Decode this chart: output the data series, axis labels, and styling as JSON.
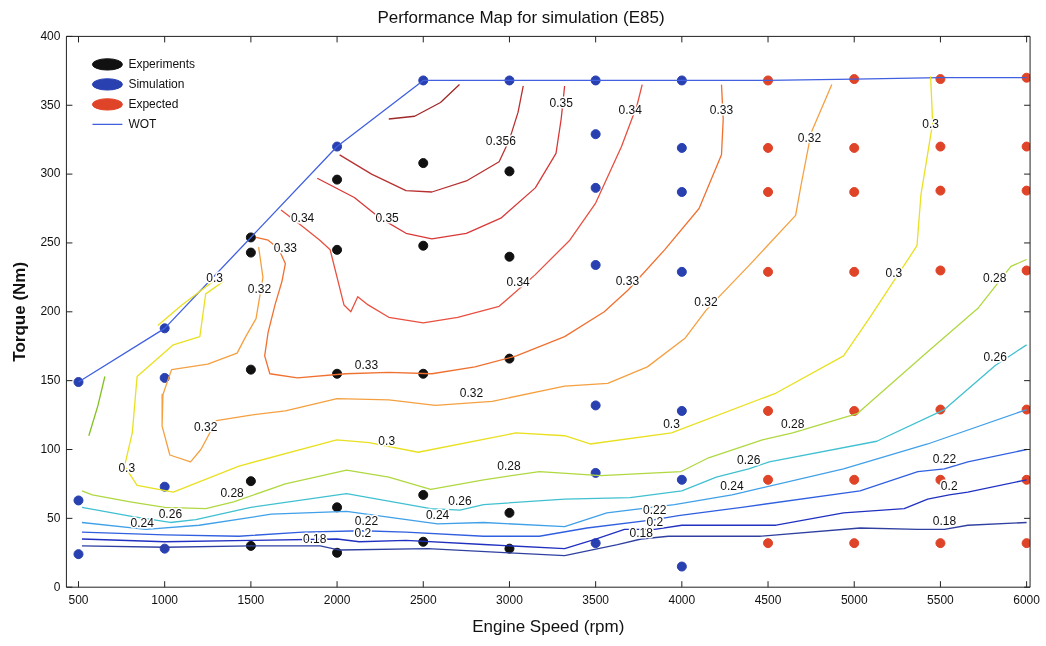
{
  "chart_data": {
    "type": "scatter",
    "title": "Performance Map for simulation (E85)",
    "xlabel": "Engine Speed (rpm)",
    "ylabel": "Torque (Nm)",
    "xlim": [
      430,
      6020
    ],
    "xticks": [
      500,
      1000,
      1500,
      2000,
      2500,
      3000,
      3500,
      4000,
      4500,
      5000,
      5500,
      6000
    ],
    "ylim": [
      0,
      400
    ],
    "yticks": [
      0,
      50,
      100,
      150,
      200,
      250,
      300,
      350,
      400
    ],
    "grid": false,
    "legend": "top left",
    "marker": "circle",
    "series": [
      {
        "type": "line",
        "color": "#a02828",
        "marker": "none",
        "x": [
          2300,
          2450,
          2600,
          2710
        ],
        "values": [
          340,
          342,
          352,
          365
        ]
      },
      {
        "type": "line",
        "color": "#b83030",
        "marker": "none",
        "x": [
          2015,
          2200,
          2400,
          2550,
          2750,
          2940,
          3000,
          3050,
          3080
        ],
        "values": [
          314,
          300,
          288,
          287,
          295,
          309,
          325,
          345,
          364
        ]
      },
      {
        "type": "line",
        "color": "#d83838",
        "marker": "none",
        "x": [
          1885,
          2100,
          2250,
          2400,
          2550,
          2750,
          2950,
          3150,
          3270,
          3300,
          3320
        ],
        "values": [
          297,
          283,
          268,
          257,
          253,
          257,
          268,
          290,
          315,
          340,
          364
        ]
      },
      {
        "type": "line",
        "color": "#e85040",
        "marker": "none",
        "x": [
          1675,
          1800,
          1900,
          1960,
          2000,
          2040,
          2080,
          2120,
          2180,
          2300,
          2500,
          2700,
          2940,
          3150,
          3350,
          3500,
          3650,
          3740,
          3770
        ],
        "values": [
          274,
          262,
          252,
          245,
          225,
          205,
          200,
          211,
          205,
          196,
          192,
          196,
          204,
          227,
          252,
          279,
          320,
          350,
          365
        ]
      },
      {
        "type": "line",
        "color": "#f07030",
        "marker": "none",
        "x": [
          1530,
          1600,
          1660,
          1700,
          1680,
          1640,
          1600,
          1580,
          1610,
          1770,
          2050,
          2300,
          2550,
          2800,
          3040,
          3320,
          3550,
          3690,
          3900,
          4100,
          4230,
          4240,
          4230
        ],
        "values": [
          254,
          252,
          246,
          235,
          222,
          205,
          185,
          168,
          155,
          152,
          155,
          156,
          155,
          160,
          168,
          182,
          200,
          216,
          245,
          275,
          314,
          340,
          365
        ]
      },
      {
        "type": "line",
        "color": "#f5a040",
        "marker": "none",
        "x": [
          1545,
          1570,
          1530,
          1470,
          1420,
          1250,
          1040,
          990,
          985,
          1030,
          1150,
          1210,
          1300,
          1500,
          1700,
          2000,
          2300,
          2570,
          2900,
          3320,
          3570,
          3800,
          4020,
          4140,
          4400,
          4660,
          4690,
          4750,
          4870
        ],
        "values": [
          247,
          225,
          195,
          182,
          170,
          162,
          158,
          140,
          117,
          96,
          91,
          100,
          121,
          125,
          128,
          137,
          136,
          132,
          135,
          146,
          148,
          160,
          181,
          201,
          235,
          270,
          291,
          330,
          365
        ]
      },
      {
        "type": "line",
        "color": "#e8e020",
        "marker": "none",
        "x": [
          1340,
          1238,
          1204,
          1050,
          840,
          812,
          767,
          840,
          1050,
          1431,
          1998,
          2186,
          2470,
          3037,
          3320,
          3468,
          3940,
          4547,
          4938,
          5091,
          5364,
          5387,
          5455,
          5443
        ],
        "values": [
          222,
          213,
          182,
          176,
          153,
          112,
          88,
          74,
          69,
          88,
          107,
          105,
          98,
          112,
          110,
          104,
          112,
          141,
          168,
          196,
          248,
          285,
          337,
          371
        ]
      },
      {
        "type": "line",
        "color": "#e8e020",
        "marker": "none",
        "x": [
          960,
          1100,
          1280
        ],
        "values": [
          190,
          205,
          222
        ]
      },
      {
        "type": "line",
        "color": "#80c020",
        "marker": "none",
        "x": [
          560,
          613,
          653
        ],
        "values": [
          110,
          132,
          153
        ]
      },
      {
        "type": "line",
        "color": "#b0d840",
        "marker": "none",
        "x": [
          520,
          580,
          800,
          1000,
          1238,
          1400,
          1700,
          2055,
          2300,
          2543,
          2850,
          3173,
          3530,
          3996,
          4155,
          4467,
          4643,
          5017,
          5426,
          5721,
          5909,
          6000
        ],
        "values": [
          70,
          67,
          62,
          58,
          57,
          62,
          75,
          85,
          80,
          71,
          78,
          84,
          81,
          84,
          94,
          107,
          112,
          126,
          171,
          203,
          233,
          238
        ]
      },
      {
        "type": "line",
        "color": "#40c0d0",
        "marker": "none",
        "x": [
          520,
          824,
          1033,
          1181,
          1500,
          2055,
          2543,
          2713,
          2850,
          3320,
          3700,
          4000,
          4200,
          4388,
          4507,
          5131,
          5523,
          5818,
          6000
        ],
        "values": [
          58,
          51,
          47,
          49,
          58,
          68,
          57,
          56,
          60,
          64,
          65,
          70,
          80,
          86,
          91,
          106,
          129,
          161,
          176
        ]
      },
      {
        "type": "line",
        "color": "#40a0e8",
        "marker": "none",
        "x": [
          520,
          892,
          1200,
          1618,
          2055,
          2350,
          2583,
          2850,
          3320,
          3565,
          3957,
          4291,
          4427,
          4938,
          5426,
          6000
        ],
        "values": [
          47,
          42,
          45,
          53,
          55,
          50,
          46,
          47,
          44,
          54,
          60,
          67,
          71,
          86,
          104,
          129
        ]
      },
      {
        "type": "line",
        "color": "#3060e0",
        "marker": "none",
        "x": [
          520,
          1000,
          1431,
          1800,
          2146,
          2400,
          2850,
          3173,
          3450,
          3843,
          3980,
          4348,
          5034,
          5369,
          5523,
          5659,
          6000
        ],
        "values": [
          40,
          38,
          37,
          40,
          41,
          40,
          37,
          37,
          43,
          49,
          52,
          58,
          70,
          84,
          86,
          91,
          100
        ]
      },
      {
        "type": "line",
        "color": "#2030c0",
        "marker": "none",
        "x": [
          520,
          1000,
          1500,
          2000,
          2129,
          2400,
          2850,
          3320,
          3500,
          3667,
          3843,
          4000,
          4547,
          4938,
          5290,
          5426,
          5551,
          5659,
          6000
        ],
        "values": [
          35,
          33,
          34,
          35,
          33,
          34,
          31,
          28,
          35,
          42,
          42,
          45,
          45,
          54,
          57,
          64,
          67,
          69,
          78
        ]
      },
      {
        "type": "line",
        "color": "#3040a0",
        "marker": "none",
        "x": [
          520,
          1000,
          1500,
          1902,
          2015,
          2526,
          3000,
          3320,
          3627,
          3764,
          3922,
          4450,
          5034,
          5369,
          5523,
          5659,
          6000
        ],
        "values": [
          30,
          29,
          30,
          30,
          27,
          28,
          25,
          23,
          31,
          35,
          37,
          37,
          43,
          42,
          42,
          45,
          47
        ]
      },
      {
        "type": "line",
        "name": "WOT",
        "color": "#4060e0",
        "marker": "none",
        "x": [
          500,
          1000,
          1500,
          2000,
          2500,
          3000,
          3500,
          4000,
          4500,
          5000,
          5500,
          6000
        ],
        "values": [
          149,
          188,
          254,
          320,
          368,
          368,
          368,
          368,
          368,
          369,
          370,
          370
        ]
      },
      {
        "name": "Experiments",
        "color": "#111111",
        "x": [
          1500,
          1500,
          1500,
          1500,
          1500,
          2000,
          2000,
          2000,
          2000,
          2000,
          2500,
          2500,
          2500,
          2500,
          2500,
          3000,
          3000,
          3000,
          3000,
          3000
        ],
        "values": [
          254,
          243,
          158,
          77,
          30,
          296,
          245,
          155,
          58,
          25,
          308,
          248,
          155,
          67,
          33,
          302,
          240,
          166,
          54,
          28
        ]
      },
      {
        "name": "Simulation",
        "color": "#2840b0",
        "x": [
          500,
          500,
          500,
          1000,
          1000,
          1000,
          1000,
          2000,
          2500,
          3000,
          3500,
          3500,
          3500,
          3500,
          3500,
          3500,
          3500,
          4000,
          4000,
          4000,
          4000,
          4000,
          4000,
          4000
        ],
        "values": [
          149,
          63,
          24,
          188,
          152,
          73,
          28,
          320,
          368,
          368,
          368,
          329,
          290,
          234,
          132,
          83,
          32,
          368,
          319,
          287,
          229,
          128,
          78,
          15
        ]
      },
      {
        "name": "Expected",
        "color": "#e04428",
        "x": [
          4500,
          4500,
          4500,
          4500,
          4500,
          4500,
          4500,
          5000,
          5000,
          5000,
          5000,
          5000,
          5000,
          5000,
          5500,
          5500,
          5500,
          5500,
          5500,
          5500,
          5500,
          6000,
          6000,
          6000,
          6000,
          6000,
          6000,
          6000
        ],
        "values": [
          368,
          319,
          287,
          229,
          128,
          78,
          32,
          369,
          319,
          287,
          229,
          128,
          78,
          32,
          369,
          320,
          288,
          230,
          129,
          78,
          32,
          370,
          320,
          288,
          230,
          129,
          78,
          32
        ]
      }
    ],
    "annotations": [
      {
        "text": "0.356",
        "x": 2950,
        "y": 318
      },
      {
        "text": "0.35",
        "x": 2290,
        "y": 262
      },
      {
        "text": "0.35",
        "x": 3300,
        "y": 345
      },
      {
        "text": "0.34",
        "x": 1800,
        "y": 262
      },
      {
        "text": "0.34",
        "x": 3050,
        "y": 215
      },
      {
        "text": "0.34",
        "x": 3700,
        "y": 340
      },
      {
        "text": "0.33",
        "x": 1700,
        "y": 240
      },
      {
        "text": "0.33",
        "x": 2170,
        "y": 155
      },
      {
        "text": "0.33",
        "x": 3684,
        "y": 216
      },
      {
        "text": "0.33",
        "x": 4230,
        "y": 340
      },
      {
        "text": "0.32",
        "x": 1550,
        "y": 210
      },
      {
        "text": "0.32",
        "x": 1238,
        "y": 110
      },
      {
        "text": "0.32",
        "x": 2780,
        "y": 135
      },
      {
        "text": "0.32",
        "x": 4140,
        "y": 201
      },
      {
        "text": "0.32",
        "x": 4740,
        "y": 320
      },
      {
        "text": "0.3",
        "x": 1290,
        "y": 218
      },
      {
        "text": "0.3",
        "x": 780,
        "y": 80
      },
      {
        "text": "0.3",
        "x": 2288,
        "y": 100
      },
      {
        "text": "0.3",
        "x": 3940,
        "y": 112
      },
      {
        "text": "0.3",
        "x": 5230,
        "y": 222
      },
      {
        "text": "0.3",
        "x": 5443,
        "y": 330
      },
      {
        "text": "0.28",
        "x": 1391,
        "y": 62
      },
      {
        "text": "0.28",
        "x": 2997,
        "y": 82
      },
      {
        "text": "0.28",
        "x": 4643,
        "y": 112
      },
      {
        "text": "0.28",
        "x": 5815,
        "y": 218
      },
      {
        "text": "0.26",
        "x": 1033,
        "y": 47
      },
      {
        "text": "0.26",
        "x": 2713,
        "y": 56
      },
      {
        "text": "0.26",
        "x": 4388,
        "y": 86
      },
      {
        "text": "0.26",
        "x": 5818,
        "y": 161
      },
      {
        "text": "0.24",
        "x": 870,
        "y": 40
      },
      {
        "text": "0.24",
        "x": 2583,
        "y": 46
      },
      {
        "text": "0.24",
        "x": 4291,
        "y": 67
      },
      {
        "text": "0.22",
        "x": 2170,
        "y": 42
      },
      {
        "text": "0.22",
        "x": 3843,
        "y": 50
      },
      {
        "text": "0.22",
        "x": 5523,
        "y": 87
      },
      {
        "text": "0.2",
        "x": 2150,
        "y": 33
      },
      {
        "text": "0.2",
        "x": 3843,
        "y": 41
      },
      {
        "text": "0.2",
        "x": 5551,
        "y": 67
      },
      {
        "text": "0.18",
        "x": 1870,
        "y": 29
      },
      {
        "text": "0.18",
        "x": 3764,
        "y": 33
      },
      {
        "text": "0.18",
        "x": 5523,
        "y": 42
      }
    ]
  }
}
